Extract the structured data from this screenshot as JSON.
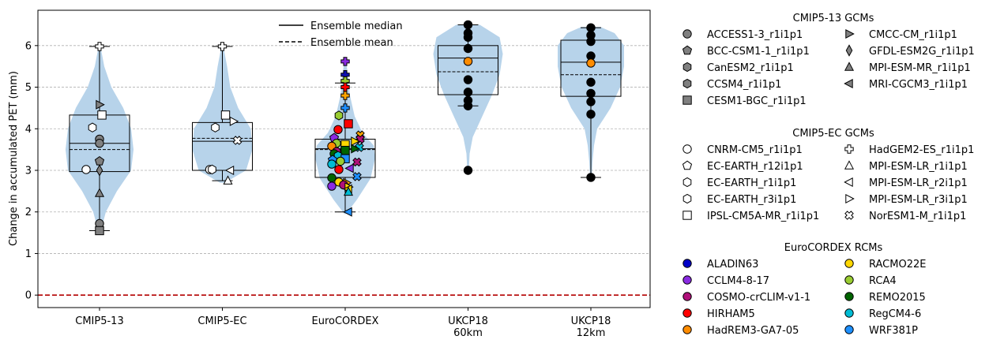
{
  "chart_data": {
    "type": "violin",
    "ylabel": "Change in accumulated PET (mm)",
    "ylim": [
      -0.3,
      6.85
    ],
    "yticks": [
      0,
      1,
      2,
      3,
      4,
      5,
      6
    ],
    "grid": "y dashed",
    "zero_line_color": "#b30000",
    "violin_color": "#b7d3ea",
    "categories": [
      "CMIP5-13",
      "CMIP5-EC",
      "EuroCORDEX",
      "UKCP18\n60km",
      "UKCP18\n12km"
    ],
    "box_stats": [
      {
        "min": 1.55,
        "q1": 2.97,
        "median": 3.65,
        "q3": 4.33,
        "max": 5.98,
        "mean": 3.5
      },
      {
        "min": 2.75,
        "q1": 3.0,
        "median": 3.7,
        "q3": 4.15,
        "max": 5.98,
        "mean": 3.77
      },
      {
        "min": 2.0,
        "q1": 2.83,
        "median": 3.52,
        "q3": 3.75,
        "max": 5.1,
        "mean": 3.5
      },
      {
        "min": 4.55,
        "q1": 4.82,
        "median": 5.7,
        "q3": 6.0,
        "max": 6.5,
        "mean": 5.37
      },
      {
        "min": 2.83,
        "q1": 4.78,
        "median": 5.6,
        "q3": 6.13,
        "max": 6.43,
        "mean": 5.3
      }
    ],
    "violins": [
      {
        "min": 1.5,
        "max": 6.0,
        "widths": [
          [
            1.5,
            1
          ],
          [
            2,
            8
          ],
          [
            2.5,
            22
          ],
          [
            3,
            40
          ],
          [
            3.5,
            43
          ],
          [
            4,
            40
          ],
          [
            4.5,
            30
          ],
          [
            5,
            15
          ],
          [
            5.5,
            6
          ],
          [
            6,
            1
          ]
        ]
      },
      {
        "min": 2.7,
        "max": 6.05,
        "widths": [
          [
            2.7,
            3
          ],
          [
            3,
            30
          ],
          [
            3.5,
            38
          ],
          [
            4,
            36
          ],
          [
            4.5,
            20
          ],
          [
            5,
            10
          ],
          [
            5.5,
            6
          ],
          [
            6,
            1
          ]
        ]
      },
      {
        "min": 1.95,
        "max": 5.65,
        "widths": [
          [
            1.95,
            1
          ],
          [
            2.3,
            15
          ],
          [
            2.8,
            32
          ],
          [
            3.3,
            38
          ],
          [
            3.6,
            36
          ],
          [
            3.9,
            22
          ],
          [
            4.3,
            12
          ],
          [
            4.8,
            6
          ],
          [
            5.2,
            4
          ],
          [
            5.65,
            1
          ]
        ]
      },
      {
        "min": 3.0,
        "max": 6.5,
        "widths": [
          [
            3,
            1
          ],
          [
            3.4,
            2
          ],
          [
            3.8,
            6
          ],
          [
            4.3,
            18
          ],
          [
            4.8,
            30
          ],
          [
            5.3,
            40
          ],
          [
            5.8,
            44
          ],
          [
            6.2,
            40
          ],
          [
            6.5,
            15
          ]
        ]
      },
      {
        "min": 2.8,
        "max": 6.45,
        "widths": [
          [
            2.8,
            1
          ],
          [
            3.2,
            2
          ],
          [
            3.6,
            4
          ],
          [
            4,
            8
          ],
          [
            4.5,
            25
          ],
          [
            5,
            37
          ],
          [
            5.5,
            42
          ],
          [
            6,
            42
          ],
          [
            6.3,
            30
          ],
          [
            6.45,
            12
          ]
        ]
      }
    ],
    "points": [
      [
        {
          "y": 5.98,
          "m": "cross",
          "c": "#ffffff",
          "dx": 0
        },
        {
          "y": 4.58,
          "m": "triR",
          "c": "#808080",
          "dx": 0
        },
        {
          "y": 4.33,
          "m": "square",
          "c": "#ffffff",
          "dx": 3
        },
        {
          "y": 4.03,
          "m": "hex",
          "c": "#ffffff",
          "dx": -9
        },
        {
          "y": 3.75,
          "m": "circle",
          "c": "#808080",
          "dx": 0
        },
        {
          "y": 3.65,
          "m": "circle",
          "c": "#808080",
          "dx": 0
        },
        {
          "y": 3.22,
          "m": "pent",
          "c": "#808080",
          "dx": 0
        },
        {
          "y": 3.02,
          "m": "circle",
          "c": "#ffffff",
          "dx": -17
        },
        {
          "y": 3.0,
          "m": "diamond",
          "c": "#808080",
          "dx": 0
        },
        {
          "y": 2.45,
          "m": "triU",
          "c": "#808080",
          "dx": 0
        },
        {
          "y": 1.72,
          "m": "circle",
          "c": "#808080",
          "dx": 0
        },
        {
          "y": 1.55,
          "m": "square",
          "c": "#808080",
          "dx": 0
        }
      ],
      [
        {
          "y": 5.98,
          "m": "cross",
          "c": "#ffffff",
          "dx": 0
        },
        {
          "y": 4.33,
          "m": "square",
          "c": "#ffffff",
          "dx": 4
        },
        {
          "y": 4.18,
          "m": "triR",
          "c": "#ffffff",
          "dx": 14
        },
        {
          "y": 4.03,
          "m": "hex",
          "c": "#ffffff",
          "dx": -9
        },
        {
          "y": 3.72,
          "m": "xcross",
          "c": "#ffffff",
          "dx": 19
        },
        {
          "y": 3.02,
          "m": "circle",
          "c": "#ffffff",
          "dx": -16
        },
        {
          "y": 3.02,
          "m": "hex",
          "c": "#ffffff",
          "dx": -13
        },
        {
          "y": 3.0,
          "m": "triL",
          "c": "#ffffff",
          "dx": 10
        },
        {
          "y": 2.75,
          "m": "triU",
          "c": "#ffffff",
          "dx": 7
        }
      ],
      [
        {
          "y": 5.62,
          "m": "cross",
          "c": "#8a2be2",
          "dx": 0
        },
        {
          "y": 5.3,
          "m": "cross",
          "c": "#1010b0",
          "dx": 0
        },
        {
          "y": 5.15,
          "m": "cross",
          "c": "#9acd32",
          "dx": 0
        },
        {
          "y": 5.0,
          "m": "cross",
          "c": "#ff0000",
          "dx": 0
        },
        {
          "y": 4.8,
          "m": "cross",
          "c": "#ffa500",
          "dx": 0
        },
        {
          "y": 4.5,
          "m": "cross",
          "c": "#1e90ff",
          "dx": 0
        },
        {
          "y": 4.32,
          "m": "hex",
          "c": "#9acd32",
          "dx": -8
        },
        {
          "y": 4.12,
          "m": "square",
          "c": "#ff0000",
          "dx": 4
        },
        {
          "y": 3.98,
          "m": "circle",
          "c": "#ff0000",
          "dx": -9
        },
        {
          "y": 3.85,
          "m": "xcross",
          "c": "#ffa500",
          "dx": 19
        },
        {
          "y": 3.78,
          "m": "pent",
          "c": "#8a2be2",
          "dx": -14
        },
        {
          "y": 3.75,
          "m": "xcross",
          "c": "#b0107a",
          "dx": 19
        },
        {
          "y": 3.7,
          "m": "triR",
          "c": "#ffd700",
          "dx": 12
        },
        {
          "y": 3.65,
          "m": "circle",
          "c": "#9acd32",
          "dx": -11
        },
        {
          "y": 3.62,
          "m": "square",
          "c": "#ffd700",
          "dx": 0
        },
        {
          "y": 3.58,
          "m": "circle",
          "c": "#ff8c00",
          "dx": -17
        },
        {
          "y": 3.55,
          "m": "xcross",
          "c": "#00bcd4",
          "dx": 18
        },
        {
          "y": 3.52,
          "m": "triR",
          "c": "#006400",
          "dx": 12
        },
        {
          "y": 3.48,
          "m": "square",
          "c": "#006400",
          "dx": 0
        },
        {
          "y": 3.45,
          "m": "circle",
          "c": "#b0107a",
          "dx": -11
        },
        {
          "y": 3.4,
          "m": "circle",
          "c": "#006400",
          "dx": -14
        },
        {
          "y": 3.35,
          "m": "hex",
          "c": "#00bcd4",
          "dx": -9
        },
        {
          "y": 3.28,
          "m": "square",
          "c": "#1e90ff",
          "dx": 0
        },
        {
          "y": 3.25,
          "m": "pent",
          "c": "#1e90ff",
          "dx": -16
        },
        {
          "y": 3.22,
          "m": "circle",
          "c": "#9acd32",
          "dx": -6
        },
        {
          "y": 3.2,
          "m": "xcross",
          "c": "#b0107a",
          "dx": 15
        },
        {
          "y": 3.15,
          "m": "circle",
          "c": "#00bcd4",
          "dx": -17
        },
        {
          "y": 3.05,
          "m": "triL",
          "c": "#8a2be2",
          "dx": 6
        },
        {
          "y": 3.02,
          "m": "circle",
          "c": "#ff0000",
          "dx": -8
        },
        {
          "y": 2.85,
          "m": "xcross",
          "c": "#1e90ff",
          "dx": 15
        },
        {
          "y": 2.82,
          "m": "circle",
          "c": "#006400",
          "dx": -17
        },
        {
          "y": 2.72,
          "m": "circle",
          "c": "#ffd700",
          "dx": -8
        },
        {
          "y": 2.7,
          "m": "triR",
          "c": "#ffa500",
          "dx": 2
        },
        {
          "y": 2.65,
          "m": "circle",
          "c": "#b0107a",
          "dx": -2
        },
        {
          "y": 2.62,
          "m": "circle",
          "c": "#8a2be2",
          "dx": -17
        },
        {
          "y": 2.6,
          "m": "triR",
          "c": "#ffd700",
          "dx": 4
        },
        {
          "y": 2.55,
          "m": "triL",
          "c": "#ffd700",
          "dx": 4
        },
        {
          "y": 2.48,
          "m": "triU",
          "c": "#00bcd4",
          "dx": 4
        },
        {
          "y": 2.0,
          "m": "triL",
          "c": "#1e90ff",
          "dx": 4
        }
      ],
      [
        {
          "y": 6.5,
          "m": "circle",
          "c": "#000000",
          "dx": 0
        },
        {
          "y": 6.3,
          "m": "circle",
          "c": "#000000",
          "dx": 0
        },
        {
          "y": 6.2,
          "m": "circle",
          "c": "#000000",
          "dx": 0
        },
        {
          "y": 5.93,
          "m": "circle",
          "c": "#000000",
          "dx": 0
        },
        {
          "y": 5.62,
          "m": "circle",
          "c": "#ff8c00",
          "dx": 0
        },
        {
          "y": 5.18,
          "m": "circle",
          "c": "#000000",
          "dx": 0
        },
        {
          "y": 4.88,
          "m": "circle",
          "c": "#000000",
          "dx": 0
        },
        {
          "y": 4.68,
          "m": "circle",
          "c": "#000000",
          "dx": 0
        },
        {
          "y": 4.55,
          "m": "circle",
          "c": "#000000",
          "dx": 0
        },
        {
          "y": 3.0,
          "m": "circle",
          "c": "#000000",
          "dx": 0
        }
      ],
      [
        {
          "y": 6.43,
          "m": "circle",
          "c": "#000000",
          "dx": 0
        },
        {
          "y": 6.25,
          "m": "circle",
          "c": "#000000",
          "dx": 0
        },
        {
          "y": 6.1,
          "m": "circle",
          "c": "#000000",
          "dx": 0
        },
        {
          "y": 5.75,
          "m": "circle",
          "c": "#000000",
          "dx": 0
        },
        {
          "y": 5.58,
          "m": "circle",
          "c": "#ff8c00",
          "dx": 0
        },
        {
          "y": 5.12,
          "m": "circle",
          "c": "#000000",
          "dx": 0
        },
        {
          "y": 4.85,
          "m": "circle",
          "c": "#000000",
          "dx": 0
        },
        {
          "y": 4.65,
          "m": "circle",
          "c": "#000000",
          "dx": 0
        },
        {
          "y": 4.35,
          "m": "circle",
          "c": "#000000",
          "dx": 0
        },
        {
          "y": 2.83,
          "m": "circle",
          "c": "#000000",
          "dx": 0
        }
      ]
    ],
    "line_legend": [
      {
        "label": "Ensemble median",
        "style": "solid"
      },
      {
        "label": "Ensemble mean",
        "style": "dashed"
      }
    ],
    "legend_groups": [
      {
        "title": "CMIP5-13 GCMs",
        "columns": [
          [
            {
              "label": "ACCESS1-3_r1i1p1",
              "m": "circle",
              "c": "#808080"
            },
            {
              "label": "BCC-CSM1-1_r1i1p1",
              "m": "pent",
              "c": "#808080"
            },
            {
              "label": "CanESM2_r1i1p1",
              "m": "hex",
              "c": "#808080"
            },
            {
              "label": "CCSM4_r1i1p1",
              "m": "hex",
              "c": "#808080"
            },
            {
              "label": "CESM1-BGC_r1i1p1",
              "m": "square",
              "c": "#808080"
            }
          ],
          [
            {
              "label": "CMCC-CM_r1i1p1",
              "m": "triR",
              "c": "#808080"
            },
            {
              "label": "GFDL-ESM2G_r1i1p1",
              "m": "diamond",
              "c": "#808080"
            },
            {
              "label": "MPI-ESM-MR_r1i1p1",
              "m": "triU",
              "c": "#808080"
            },
            {
              "label": "MRI-CGCM3_r1i1p1",
              "m": "triL",
              "c": "#808080"
            }
          ]
        ]
      },
      {
        "title": "CMIP5-EC GCMs",
        "columns": [
          [
            {
              "label": "CNRM-CM5_r1i1p1",
              "m": "circle",
              "c": "#ffffff"
            },
            {
              "label": "EC-EARTH_r12i1p1",
              "m": "pent",
              "c": "#ffffff"
            },
            {
              "label": "EC-EARTH_r1i1p1",
              "m": "hex",
              "c": "#ffffff"
            },
            {
              "label": "EC-EARTH_r3i1p1",
              "m": "hex",
              "c": "#ffffff"
            },
            {
              "label": "IPSL-CM5A-MR_r1i1p1",
              "m": "square",
              "c": "#ffffff"
            }
          ],
          [
            {
              "label": "HadGEM2-ES_r1i1p1",
              "m": "cross",
              "c": "#ffffff"
            },
            {
              "label": "MPI-ESM-LR_r1i1p1",
              "m": "triU",
              "c": "#ffffff"
            },
            {
              "label": "MPI-ESM-LR_r2i1p1",
              "m": "triL",
              "c": "#ffffff"
            },
            {
              "label": "MPI-ESM-LR_r3i1p1",
              "m": "triR",
              "c": "#ffffff"
            },
            {
              "label": "NorESM1-M_r1i1p1",
              "m": "xcross",
              "c": "#ffffff"
            }
          ]
        ]
      },
      {
        "title": "EuroCORDEX RCMs",
        "columns": [
          [
            {
              "label": "ALADIN63",
              "m": "circle",
              "c": "#0000c8"
            },
            {
              "label": "CCLM4-8-17",
              "m": "circle",
              "c": "#8a2be2"
            },
            {
              "label": "COSMO-crCLIM-v1-1",
              "m": "circle",
              "c": "#b0107a"
            },
            {
              "label": "HIRHAM5",
              "m": "circle",
              "c": "#ff0000"
            },
            {
              "label": "HadREM3-GA7-05",
              "m": "circle",
              "c": "#ff8c00"
            }
          ],
          [
            {
              "label": "RACMO22E",
              "m": "circle",
              "c": "#ffd700"
            },
            {
              "label": "RCA4",
              "m": "circle",
              "c": "#9acd32"
            },
            {
              "label": "REMO2015",
              "m": "circle",
              "c": "#006400"
            },
            {
              "label": "RegCM4-6",
              "m": "circle",
              "c": "#00bcd4"
            },
            {
              "label": "WRF381P",
              "m": "circle",
              "c": "#1e90ff"
            }
          ]
        ]
      }
    ]
  }
}
